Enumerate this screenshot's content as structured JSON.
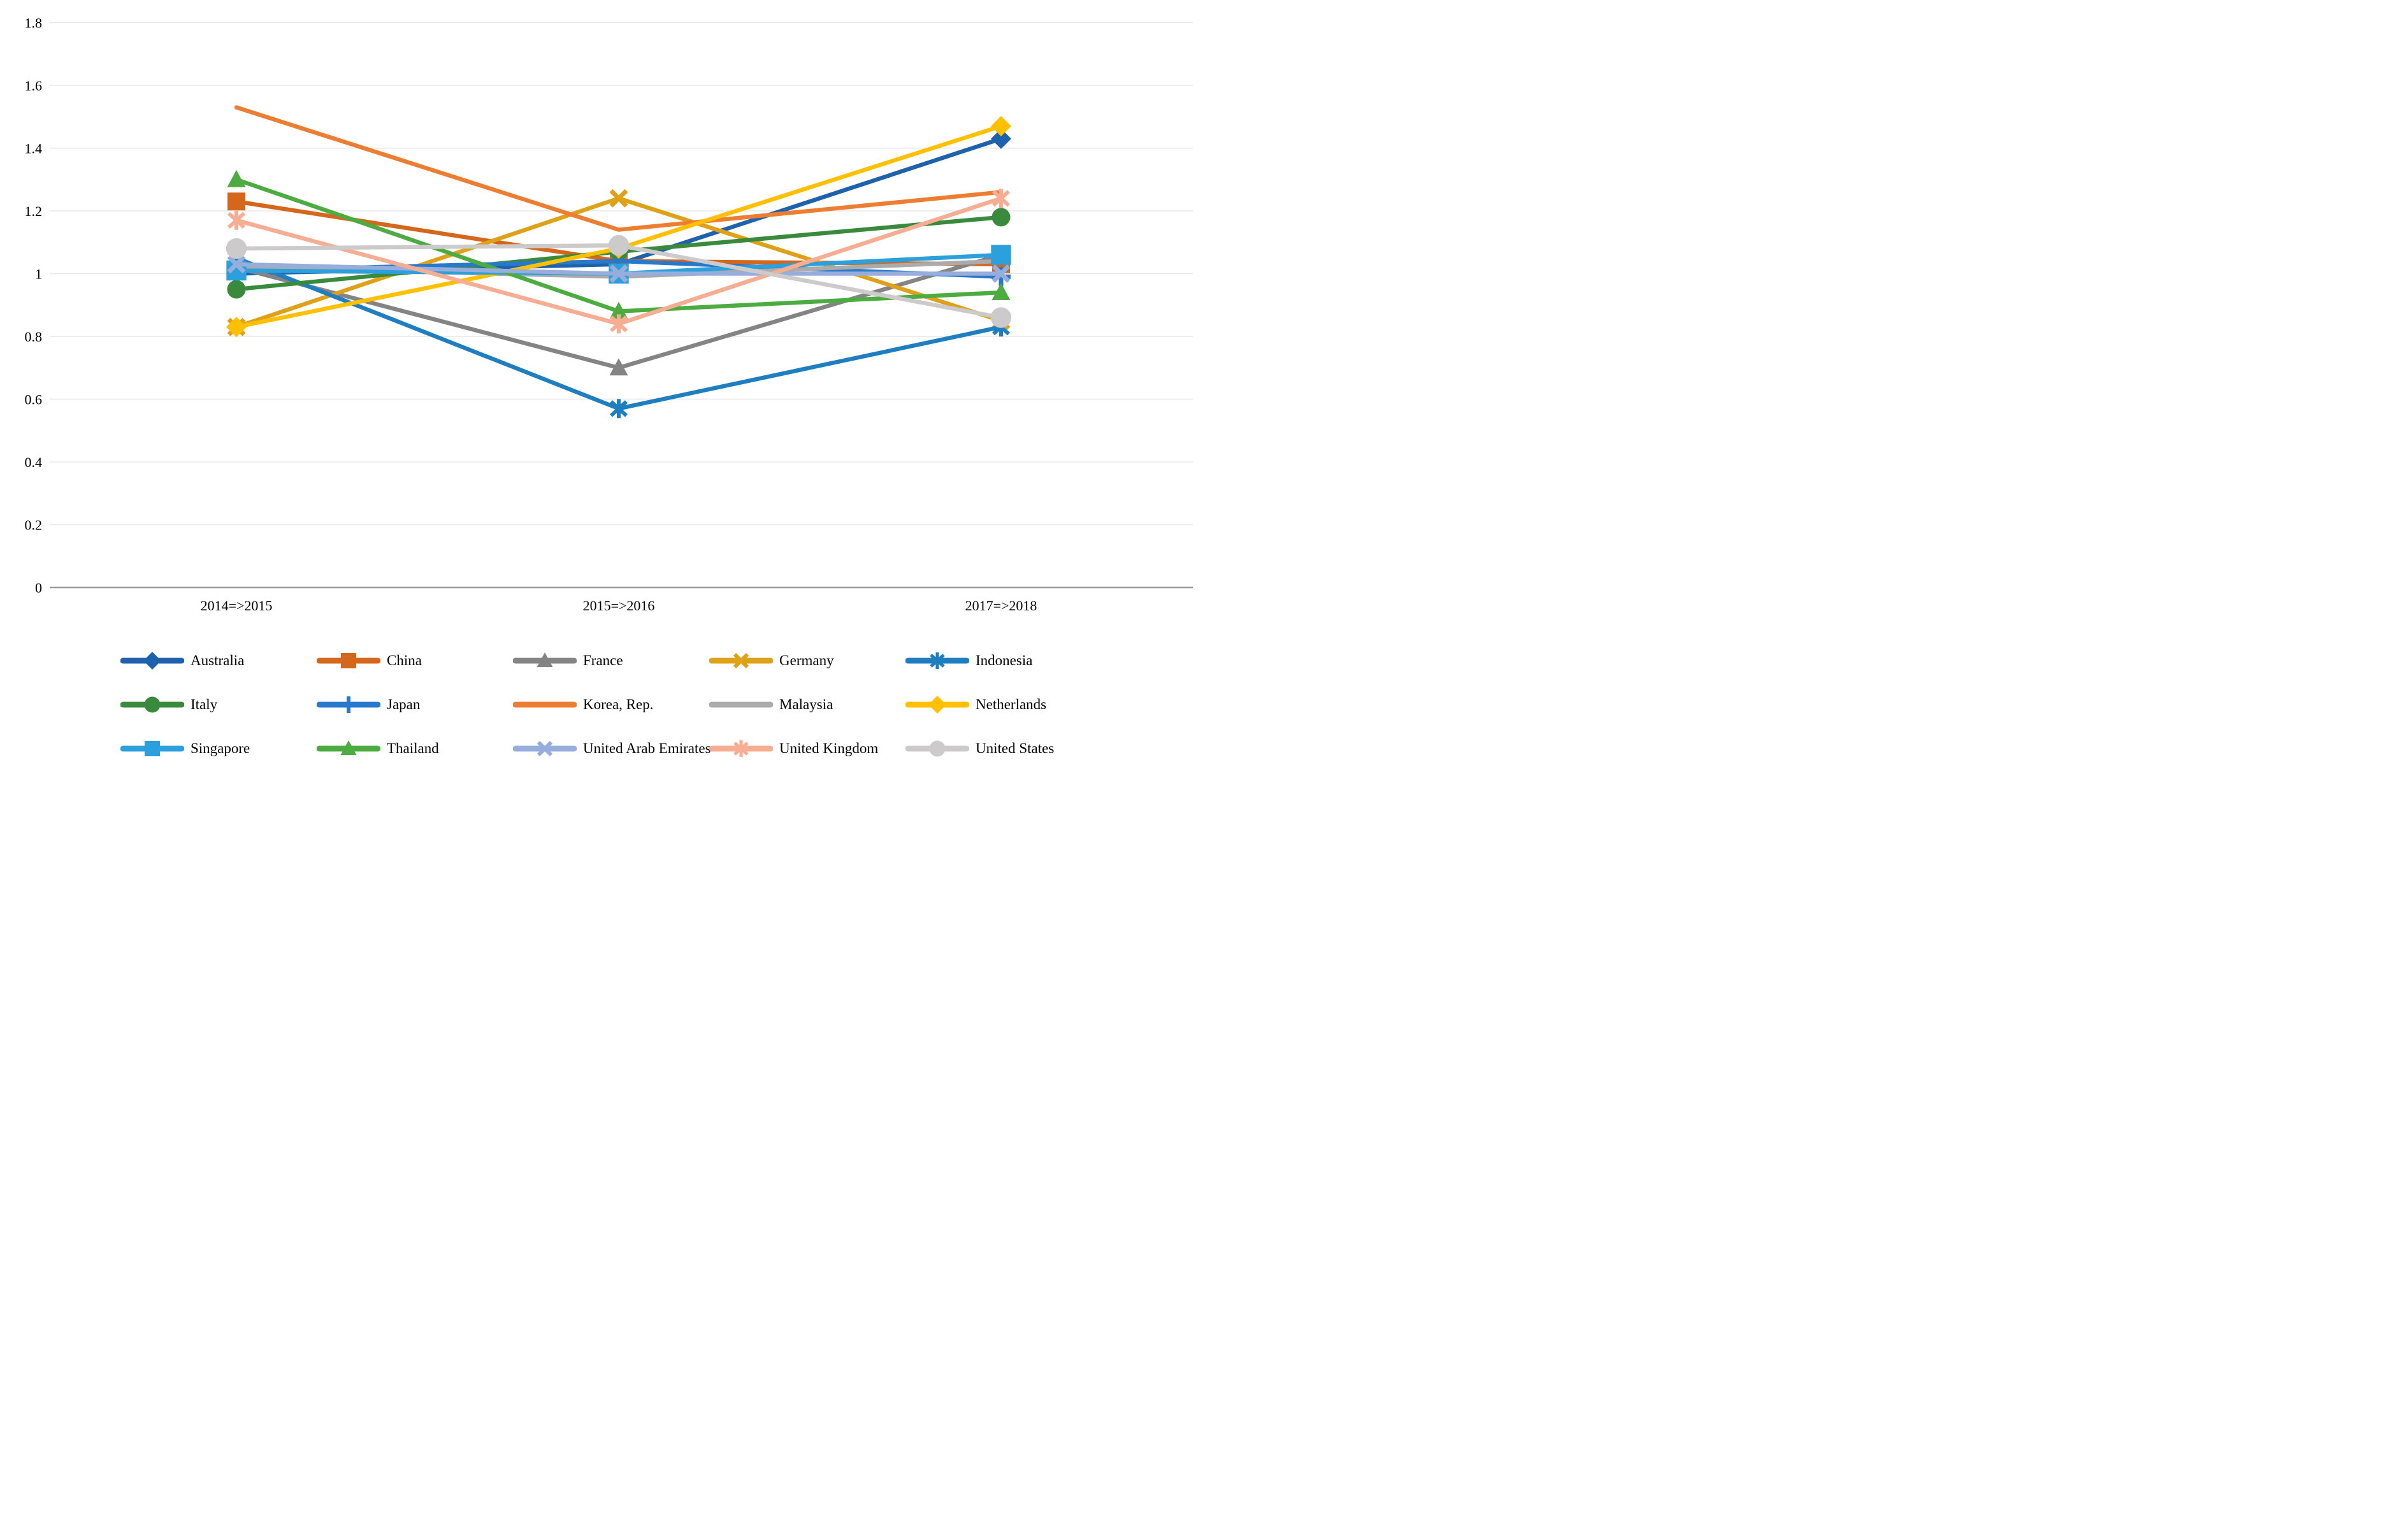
{
  "chart_data": {
    "type": "line",
    "title": "",
    "xlabel": "",
    "ylabel": "",
    "categories": [
      "2014=>2015",
      "2015=>2016",
      "2017=>2018"
    ],
    "ylim": [
      0,
      1.8
    ],
    "ytick_labels": [
      "1.8",
      "1.6",
      "1.4",
      "1.2",
      "1",
      "0.8",
      "0.6",
      "0.4",
      "0.2",
      "0"
    ],
    "ytick_values": [
      1.8,
      1.6,
      1.4,
      1.2,
      1.0,
      0.8,
      0.6,
      0.4,
      0.2,
      0
    ],
    "grid": true,
    "gridline_color": "#e8e8e8",
    "axis_line_color": "#9b9b9b",
    "legend_position": "bottom",
    "series": [
      {
        "name": "Australia",
        "color": "#1E62AE",
        "marker": "diamond",
        "values": [
          1.0,
          1.03,
          1.43
        ]
      },
      {
        "name": "China",
        "color": "#D5671D",
        "marker": "square",
        "values": [
          1.23,
          1.04,
          1.03
        ]
      },
      {
        "name": "France",
        "color": "#848484",
        "marker": "triangle",
        "values": [
          1.02,
          0.7,
          1.06
        ]
      },
      {
        "name": "Germany",
        "color": "#DFA118",
        "marker": "x",
        "values": [
          0.83,
          1.24,
          0.85
        ]
      },
      {
        "name": "Indonesia",
        "color": "#1E7EC0",
        "marker": "asterisk",
        "values": [
          1.05,
          0.57,
          0.83
        ]
      },
      {
        "name": "Italy",
        "color": "#398A3C",
        "marker": "circle",
        "values": [
          0.95,
          1.07,
          1.18
        ]
      },
      {
        "name": "Japan",
        "color": "#2878CB",
        "marker": "plus",
        "values": [
          1.01,
          1.04,
          0.99
        ]
      },
      {
        "name": "Korea, Rep.",
        "color": "#ED7D31",
        "marker": "none",
        "values": [
          1.53,
          1.14,
          1.26
        ]
      },
      {
        "name": "Malaysia",
        "color": "#ABABAB",
        "marker": "none",
        "values": [
          1.02,
          0.99,
          1.04
        ]
      },
      {
        "name": "Netherlands",
        "color": "#FFC000",
        "marker": "diamond",
        "values": [
          0.83,
          1.08,
          1.47
        ]
      },
      {
        "name": "Singapore",
        "color": "#2BA0DC",
        "marker": "square",
        "values": [
          1.01,
          1.0,
          1.06
        ]
      },
      {
        "name": "Thailand",
        "color": "#4DAC41",
        "marker": "triangle",
        "values": [
          1.3,
          0.88,
          0.94
        ]
      },
      {
        "name": "United Arab Emirates",
        "color": "#97ADDC",
        "marker": "x",
        "values": [
          1.03,
          1.0,
          1.0
        ]
      },
      {
        "name": "United Kingdom",
        "color": "#F6AD92",
        "marker": "asterisk",
        "values": [
          1.17,
          0.84,
          1.24
        ]
      },
      {
        "name": "United States",
        "color": "#CCCACA",
        "marker": "circle",
        "values": [
          1.08,
          1.09,
          0.86
        ]
      }
    ],
    "layout": {
      "plot_x": [
        371,
        971,
        1571
      ],
      "y_of_zero": 922,
      "y_of_max": 35.5,
      "grid_x_start": 78,
      "grid_x_end": 1872,
      "xtick_y": 958,
      "ytick_x": 66,
      "line_width": 6.5
    }
  }
}
